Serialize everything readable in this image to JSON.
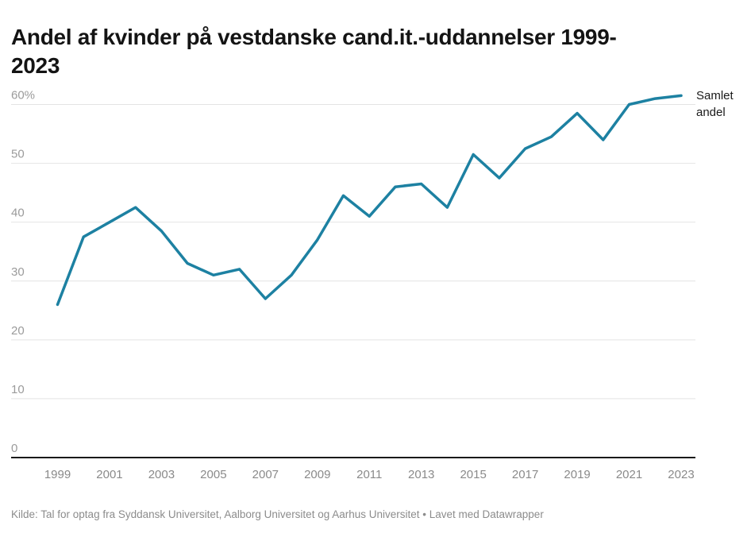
{
  "header": {
    "title_lines": [
      "Andel af kvinder på vestdanske cand.it.-uddannelser 1999-",
      "2023"
    ]
  },
  "chart_data": {
    "type": "line",
    "title": "Andel af kvinder på vestdanske cand.it.-uddannelser 1999-2023",
    "x": [
      1999,
      2000,
      2001,
      2002,
      2003,
      2004,
      2005,
      2006,
      2007,
      2008,
      2009,
      2010,
      2011,
      2012,
      2013,
      2014,
      2015,
      2016,
      2017,
      2018,
      2019,
      2020,
      2021,
      2022,
      2023
    ],
    "series": [
      {
        "name": "Samlet andel",
        "values": [
          26,
          37.5,
          40,
          42.5,
          38.5,
          33,
          31,
          32,
          27,
          31,
          37,
          44.5,
          41,
          46,
          46.5,
          42.5,
          51.5,
          47.5,
          52.5,
          54.5,
          58.5,
          54,
          60,
          61,
          61.5
        ]
      }
    ],
    "xlabel": "",
    "ylabel": "",
    "ylim": [
      0,
      60
    ],
    "yticks": [
      0,
      10,
      20,
      30,
      40,
      50,
      60
    ],
    "ytick_labels": [
      "0",
      "10",
      "20",
      "30",
      "40",
      "50",
      "60%"
    ],
    "x_ticks": [
      1999,
      2001,
      2003,
      2005,
      2007,
      2009,
      2011,
      2013,
      2015,
      2017,
      2019,
      2021,
      2023
    ],
    "x_tick_labels": [
      "1999",
      "2001",
      "2003",
      "2005",
      "2007",
      "2009",
      "2011",
      "2013",
      "2015",
      "2017",
      "2019",
      "2021",
      "2023"
    ],
    "grid": "horizontal",
    "legend_position": "end-of-line"
  },
  "annotations": {
    "series_label": "Samlet andel"
  },
  "footer": {
    "source_note": "Kilde: Tal for optag fra Syddansk Universitet, Aalborg Universitet og Aarhus Universitet • Lavet med Datawrapper"
  },
  "colors": {
    "line": "#1d81a2",
    "grid": "#e4e4e4",
    "axis": "#1a1a1a",
    "ytick_text": "#9b9b9b",
    "xtick_text": "#8a8a8a",
    "title_text": "#141414",
    "series_label_text": "#1a1a1a",
    "footer_text": "#8c8c8c",
    "background": "#ffffff"
  }
}
